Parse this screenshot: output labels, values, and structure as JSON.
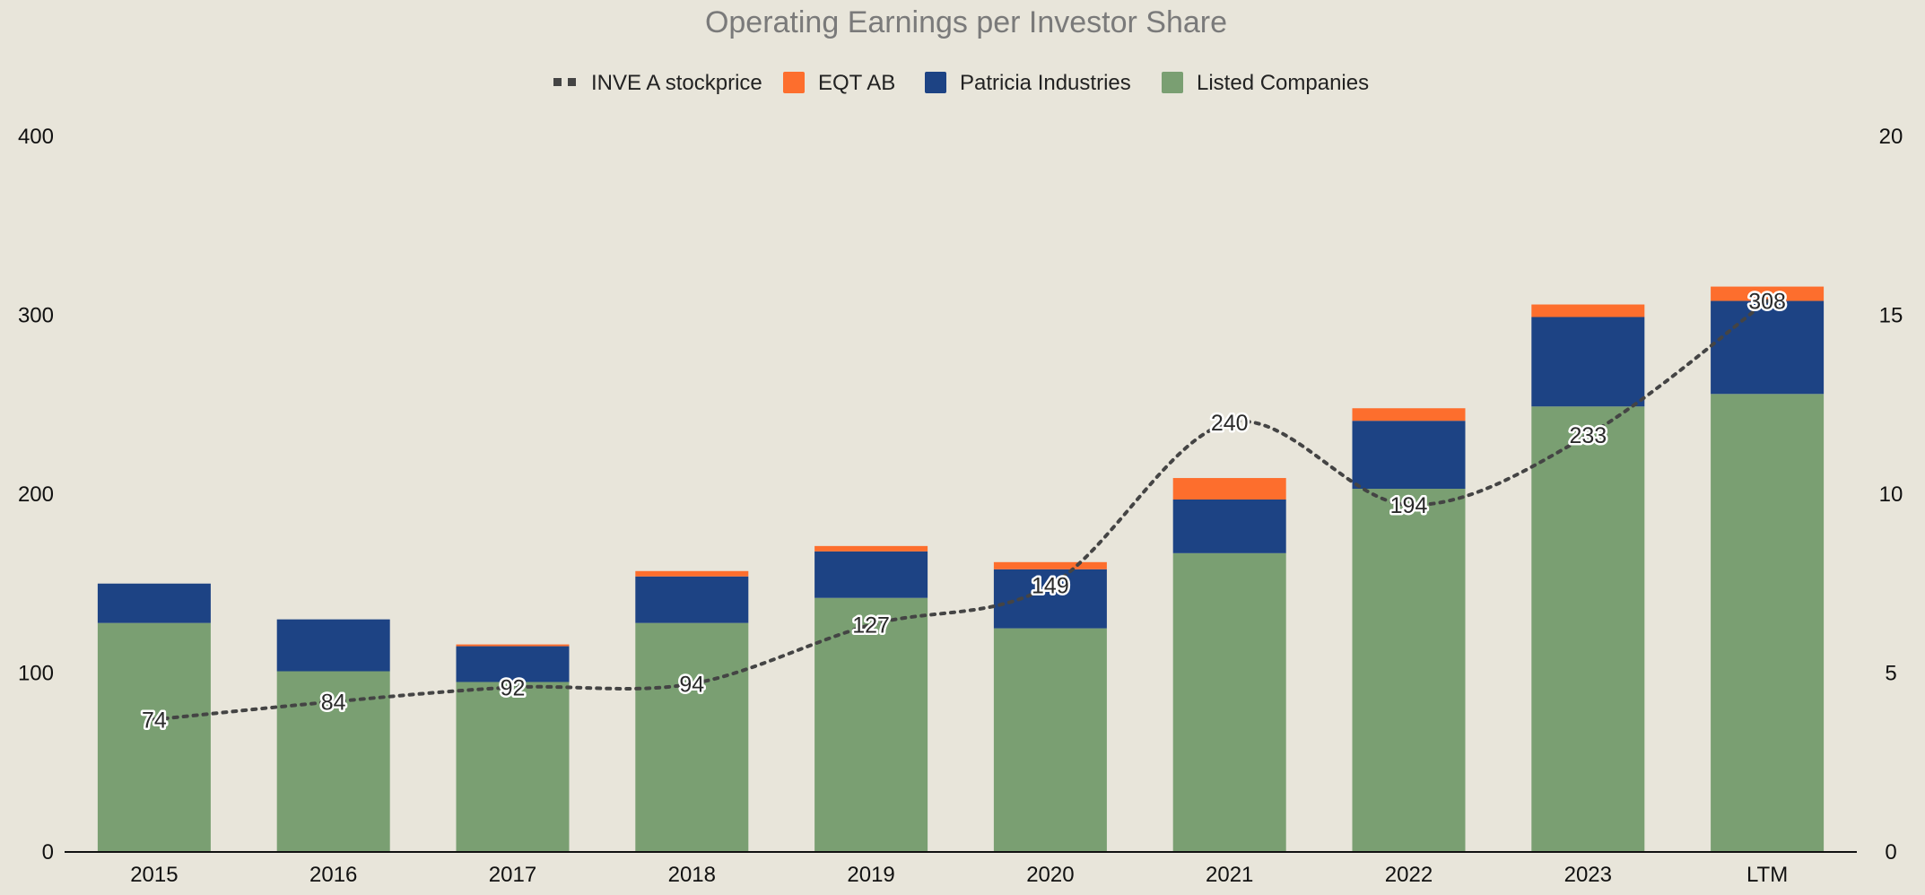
{
  "chart_data": {
    "type": "bar",
    "stacked": true,
    "title": "Operating Earnings per Investor Share",
    "categories": [
      "2015",
      "2016",
      "2017",
      "2018",
      "2019",
      "2020",
      "2021",
      "2022",
      "2023",
      "LTM"
    ],
    "series": [
      {
        "name": "Listed Companies",
        "type": "bar",
        "axis": "left",
        "color": "#7a9f72",
        "values": [
          128,
          101,
          95,
          128,
          142,
          125,
          167,
          203,
          249,
          256
        ]
      },
      {
        "name": "Patricia Industries",
        "type": "bar",
        "axis": "left",
        "color": "#1d4384",
        "values": [
          22,
          29,
          20,
          26,
          26,
          33,
          30,
          38,
          50,
          52
        ]
      },
      {
        "name": "EQT AB",
        "type": "bar",
        "axis": "left",
        "color": "#fd6e2d",
        "values": [
          0,
          0,
          1,
          3,
          3,
          4,
          12,
          7,
          7,
          8
        ]
      },
      {
        "name": "INVE A stockprice",
        "type": "line",
        "style": "dotted",
        "axis": "right",
        "color": "#444444",
        "values": [
          74,
          84,
          92,
          94,
          127,
          149,
          240,
          194,
          233,
          308
        ],
        "labels": [
          "74",
          "84",
          "92",
          "94",
          "127",
          "149",
          "240",
          "194",
          "233",
          "308"
        ]
      }
    ],
    "y_left": {
      "ticks": [
        "0",
        "100",
        "200",
        "300",
        "400"
      ],
      "min": 0,
      "max": 400
    },
    "y_right": {
      "ticks": [
        "0",
        "5",
        "10",
        "15",
        "20"
      ],
      "min": 0,
      "max": 20
    },
    "line_to_right_axis_divisor": 20,
    "legend": {
      "position": "top",
      "order": [
        "INVE A stockprice",
        "EQT AB",
        "Patricia Industries",
        "Listed Companies"
      ]
    },
    "grid": false,
    "colors": {
      "background": "#e8e5da",
      "baseline": "#111111"
    }
  }
}
